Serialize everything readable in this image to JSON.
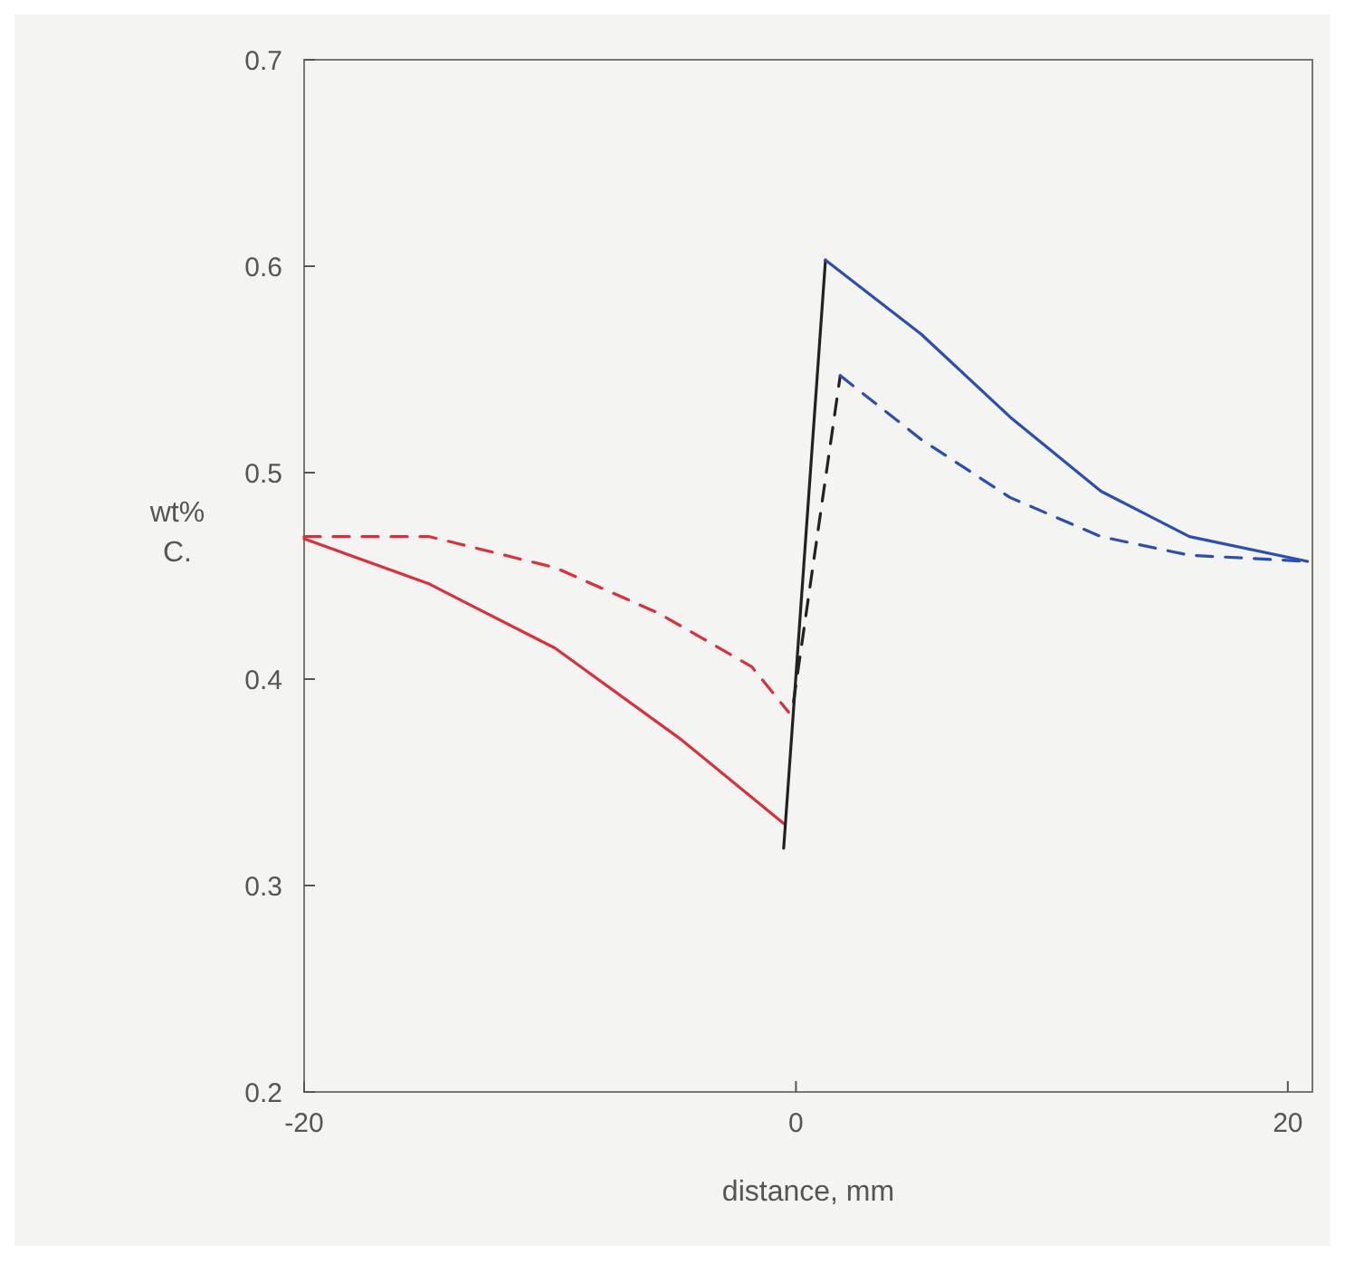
{
  "chart_data": {
    "type": "line",
    "xlabel": "distance, mm",
    "ylabel": "wt% C.",
    "xlim": [
      -20,
      21
    ],
    "ylim": [
      0.2,
      0.7
    ],
    "xticks": [
      -20,
      0,
      20
    ],
    "yticks": [
      0.2,
      0.3,
      0.4,
      0.5,
      0.6,
      0.7
    ],
    "grid": false,
    "marker": "none",
    "series": [
      {
        "color": "#d9303a",
        "line_style": "solid",
        "x": [
          -20,
          -14.9,
          -9.8,
          -4.7,
          -0.5
        ],
        "values": [
          0.468,
          0.446,
          0.415,
          0.371,
          0.33
        ]
      },
      {
        "color": "#d9303a",
        "line_style": "dashed",
        "x": [
          -20,
          -14.9,
          -9.8,
          -5.6,
          -1.8,
          -0.3
        ],
        "values": [
          0.469,
          0.469,
          0.454,
          0.432,
          0.406,
          0.384
        ]
      },
      {
        "color": "#222222",
        "line_style": "solid",
        "x": [
          -0.5,
          1.2
        ],
        "values": [
          0.318,
          0.603
        ]
      },
      {
        "color": "#222222",
        "line_style": "dashed",
        "x": [
          -0.1,
          1.8
        ],
        "values": [
          0.389,
          0.547
        ]
      },
      {
        "color": "#2a4fb0",
        "line_style": "solid",
        "x": [
          1.2,
          5.1,
          8.7,
          12.4,
          16,
          20.8
        ],
        "values": [
          0.603,
          0.567,
          0.527,
          0.491,
          0.469,
          0.457
        ]
      },
      {
        "color": "#2a4fb0",
        "line_style": "dashed",
        "x": [
          1.8,
          5.1,
          8.7,
          12.4,
          16,
          20.8
        ],
        "values": [
          0.547,
          0.516,
          0.488,
          0.469,
          0.46,
          0.457
        ]
      }
    ]
  }
}
